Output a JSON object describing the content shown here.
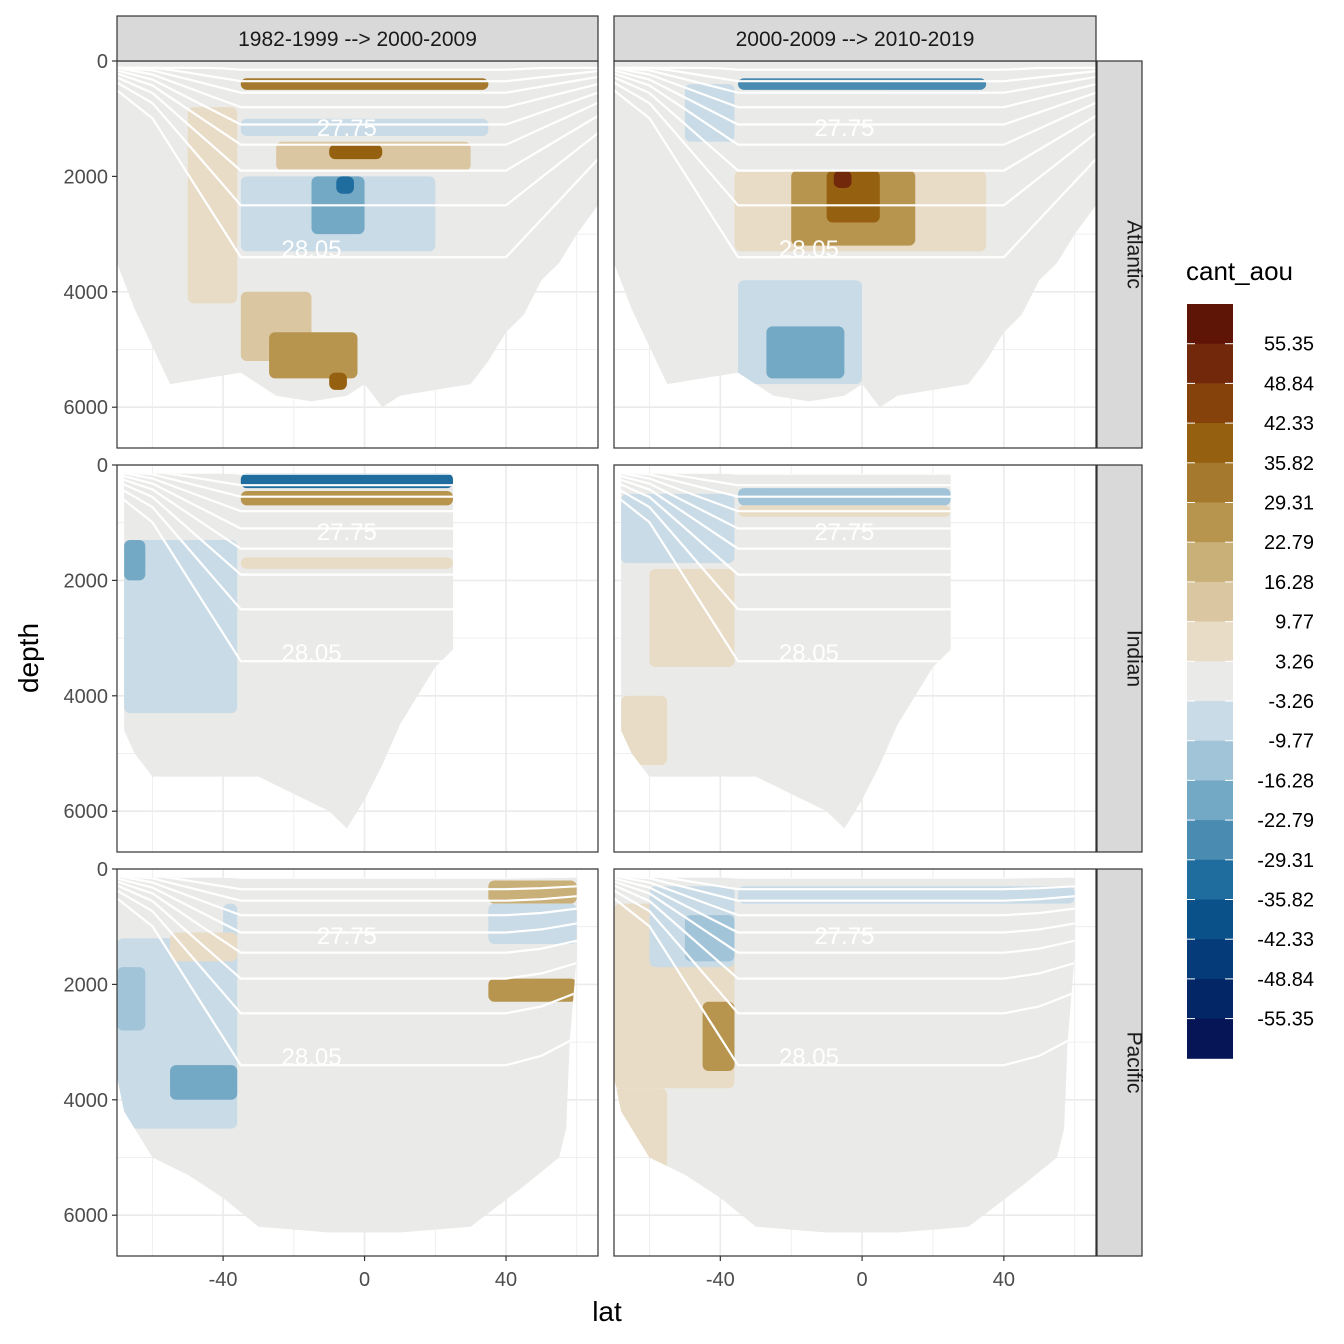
{
  "chart_data": {
    "type": "heatmap",
    "xlabel": "lat",
    "ylabel": "depth",
    "xlim": [
      -70,
      66
    ],
    "ylim": [
      6800,
      0
    ],
    "x_ticks": [
      -40,
      0,
      40
    ],
    "y_ticks": [
      0,
      2000,
      4000,
      6000
    ],
    "col_facets": [
      "1982-1999 --> 2000-2009",
      "2000-2009 --> 2010-2019"
    ],
    "row_facets": [
      "Atlantic",
      "Indian",
      "Pacific"
    ],
    "grid": true,
    "legend": {
      "title": "cant_aou",
      "position": "right",
      "breaks": [
        "55.35",
        "48.84",
        "42.33",
        "35.82",
        "29.31",
        "22.79",
        "16.28",
        "9.77",
        "3.26",
        "-3.26",
        "-9.77",
        "-16.28",
        "-22.79",
        "-29.31",
        "-35.82",
        "-42.33",
        "-48.84",
        "-55.35"
      ],
      "colors": [
        "#5f1505",
        "#72280a",
        "#85420a",
        "#95600f",
        "#a57a2e",
        "#b8954f",
        "#c9af78",
        "#dac6a1",
        "#e9dcc6",
        "#eaebe8",
        "#c8dbe7",
        "#a2c4d8",
        "#74a9c6",
        "#4a8bb2",
        "#1f6c9e",
        "#0a5089",
        "#053b78",
        "#032766",
        "#061556"
      ]
    },
    "isopycnal_labels": [
      "27.75",
      "28.05"
    ],
    "panels": [
      {
        "basin": "Atlantic",
        "period": "1982-1999 --> 2000-2009",
        "features": [
          {
            "lat": [
              -50,
              -36
            ],
            "depth": [
              800,
              4200
            ],
            "value": 6
          },
          {
            "lat": [
              -25,
              30
            ],
            "depth": [
              1400,
              1900
            ],
            "value": 12
          },
          {
            "lat": [
              -10,
              5
            ],
            "depth": [
              1450,
              1700
            ],
            "value": 40
          },
          {
            "lat": [
              -35,
              20
            ],
            "depth": [
              2000,
              3300
            ],
            "value": -7
          },
          {
            "lat": [
              -15,
              0
            ],
            "depth": [
              2000,
              3000
            ],
            "value": -18
          },
          {
            "lat": [
              -8,
              -3
            ],
            "depth": [
              2000,
              2300
            ],
            "value": -30
          },
          {
            "lat": [
              -35,
              -15
            ],
            "depth": [
              4000,
              5200
            ],
            "value": 12
          },
          {
            "lat": [
              -27,
              -2
            ],
            "depth": [
              4700,
              5500
            ],
            "value": 25
          },
          {
            "lat": [
              -10,
              -5
            ],
            "depth": [
              5400,
              5700
            ],
            "value": 38
          },
          {
            "lat": [
              -35,
              35
            ],
            "depth": [
              1000,
              1300
            ],
            "value": -4
          },
          {
            "lat": [
              -35,
              35
            ],
            "depth": [
              300,
              500
            ],
            "value": 30
          }
        ]
      },
      {
        "basin": "Atlantic",
        "period": "2000-2009 --> 2010-2019",
        "features": [
          {
            "lat": [
              -50,
              -36
            ],
            "depth": [
              400,
              1400
            ],
            "value": -5
          },
          {
            "lat": [
              -36,
              35
            ],
            "depth": [
              1900,
              3300
            ],
            "value": 8
          },
          {
            "lat": [
              -20,
              15
            ],
            "depth": [
              1900,
              3200
            ],
            "value": 24
          },
          {
            "lat": [
              -10,
              5
            ],
            "depth": [
              1900,
              2800
            ],
            "value": 38
          },
          {
            "lat": [
              -8,
              -3
            ],
            "depth": [
              1900,
              2200
            ],
            "value": 52
          },
          {
            "lat": [
              -35,
              0
            ],
            "depth": [
              3800,
              5600
            ],
            "value": -6
          },
          {
            "lat": [
              -27,
              -5
            ],
            "depth": [
              4600,
              5500
            ],
            "value": -18
          },
          {
            "lat": [
              -35,
              35
            ],
            "depth": [
              300,
              500
            ],
            "value": -25
          }
        ]
      },
      {
        "basin": "Indian",
        "period": "1982-1999 --> 2000-2009",
        "features": [
          {
            "lat": [
              -68,
              -36
            ],
            "depth": [
              1300,
              4300
            ],
            "value": -6
          },
          {
            "lat": [
              -68,
              -62
            ],
            "depth": [
              1300,
              2000
            ],
            "value": -18
          },
          {
            "lat": [
              -35,
              25
            ],
            "depth": [
              150,
              400
            ],
            "value": -30
          },
          {
            "lat": [
              -35,
              25
            ],
            "depth": [
              450,
              700
            ],
            "value": 28
          },
          {
            "lat": [
              -35,
              25
            ],
            "depth": [
              1600,
              1800
            ],
            "value": 7
          }
        ]
      },
      {
        "basin": "Indian",
        "period": "2000-2009 --> 2010-2019",
        "features": [
          {
            "lat": [
              -68,
              -36
            ],
            "depth": [
              500,
              1700
            ],
            "value": -5
          },
          {
            "lat": [
              -60,
              -36
            ],
            "depth": [
              1800,
              3500
            ],
            "value": 6
          },
          {
            "lat": [
              -68,
              -55
            ],
            "depth": [
              4000,
              5200
            ],
            "value": 7
          },
          {
            "lat": [
              -35,
              25
            ],
            "depth": [
              400,
              700
            ],
            "value": -15
          },
          {
            "lat": [
              -35,
              25
            ],
            "depth": [
              700,
              900
            ],
            "value": 7
          }
        ]
      },
      {
        "basin": "Pacific",
        "period": "1982-1999 --> 2000-2009",
        "features": [
          {
            "lat": [
              -70,
              -36
            ],
            "depth": [
              1200,
              4500
            ],
            "value": -6
          },
          {
            "lat": [
              -70,
              -62
            ],
            "depth": [
              1700,
              2800
            ],
            "value": -15
          },
          {
            "lat": [
              -55,
              -36
            ],
            "depth": [
              3400,
              4000
            ],
            "value": -20
          },
          {
            "lat": [
              -40,
              -36
            ],
            "depth": [
              600,
              1800
            ],
            "value": -5
          },
          {
            "lat": [
              -55,
              -36
            ],
            "depth": [
              1100,
              1600
            ],
            "value": 6
          },
          {
            "lat": [
              35,
              60
            ],
            "depth": [
              1900,
              2300
            ],
            "value": 24
          },
          {
            "lat": [
              35,
              60
            ],
            "depth": [
              200,
              600
            ],
            "value": 22
          },
          {
            "lat": [
              35,
              60
            ],
            "depth": [
              600,
              1300
            ],
            "value": -5
          }
        ]
      },
      {
        "basin": "Pacific",
        "period": "2000-2009 --> 2010-2019",
        "features": [
          {
            "lat": [
              -70,
              -36
            ],
            "depth": [
              600,
              3800
            ],
            "value": 8
          },
          {
            "lat": [
              -45,
              -36
            ],
            "depth": [
              2300,
              3500
            ],
            "value": 24
          },
          {
            "lat": [
              -60,
              -36
            ],
            "depth": [
              300,
              1700
            ],
            "value": -6
          },
          {
            "lat": [
              -50,
              -36
            ],
            "depth": [
              800,
              1600
            ],
            "value": -15
          },
          {
            "lat": [
              -70,
              -55
            ],
            "depth": [
              3800,
              5600
            ],
            "value": 7
          },
          {
            "lat": [
              -35,
              60
            ],
            "depth": [
              300,
              600
            ],
            "value": -5
          }
        ]
      }
    ]
  }
}
